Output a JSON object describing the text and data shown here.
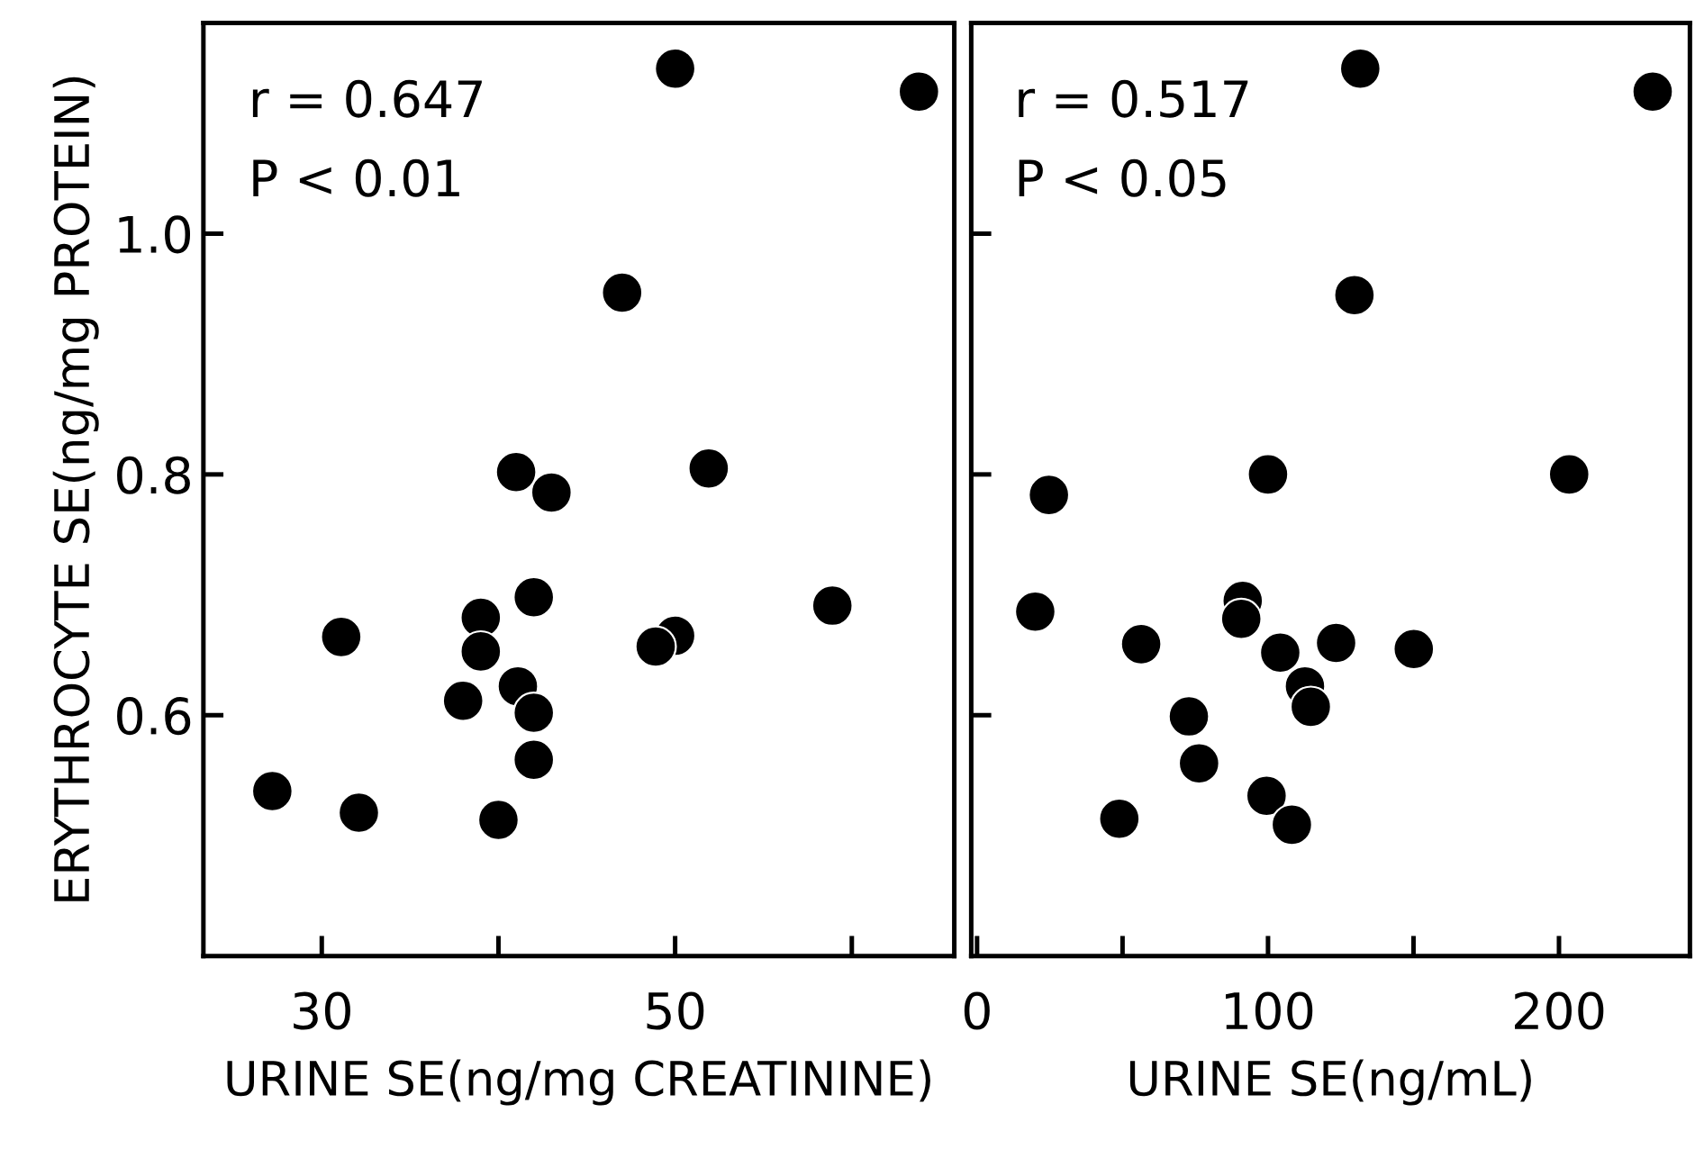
{
  "chart_data": [
    {
      "type": "scatter",
      "xlabel": "URINE SE(ng/mg CREATININE)",
      "ylabel": "ERYTHROCYTE SE(ng/mg PROTEIN)",
      "annotations": [
        "r = 0.647",
        "P < 0.01"
      ],
      "marker": "circle",
      "grid": false,
      "legend": false,
      "xlim": [
        23.3,
        65.8
      ],
      "xticks": [
        30,
        {
          "value": 40,
          "label": null
        },
        50,
        {
          "value": 60,
          "label": null
        }
      ],
      "ylim": [
        0.4,
        1.175
      ],
      "yticks": [
        {
          "value": 1.0,
          "label": "1.0"
        },
        0.8,
        0.6
      ],
      "series": [
        {
          "color": "#000000",
          "x": [
            27.2,
            32.1,
            31.1,
            38.0,
            39.0,
            39.0,
            40.0,
            41.0,
            41.1,
            42.0,
            42.0,
            42.0,
            43.0,
            47.0,
            50.0,
            50.0,
            48.9,
            51.9,
            58.9,
            63.8
          ],
          "values": [
            0.537,
            0.519,
            0.665,
            0.612,
            0.681,
            0.653,
            0.513,
            0.802,
            0.624,
            0.602,
            0.563,
            0.698,
            0.785,
            0.951,
            1.137,
            0.666,
            0.657,
            0.805,
            0.691,
            1.118
          ]
        }
      ]
    },
    {
      "type": "scatter",
      "xlabel": "URINE SE(ng/mL)",
      "annotations": [
        "r = 0.517",
        "P < 0.05"
      ],
      "marker": "circle",
      "grid": false,
      "legend": false,
      "tick_labels": "x",
      "xlim": [
        -2,
        245
      ],
      "xticks": [
        0,
        {
          "value": 50,
          "label": null
        },
        100,
        {
          "value": 150,
          "label": null
        },
        200
      ],
      "ylim": [
        0.4,
        1.175
      ],
      "yticks": [
        {
          "value": 1.0,
          "label": null
        },
        {
          "value": 0.8,
          "label": null
        },
        {
          "value": 0.6,
          "label": null
        }
      ],
      "series": [
        {
          "color": "#000000",
          "x": [
            20.0,
            24.7,
            56.4,
            48.9,
            72.8,
            76.3,
            91.3,
            90.8,
            100.0,
            99.5,
            104.2,
            108.2,
            112.7,
            114.7,
            123.4,
            150.1,
            129.7,
            131.7,
            203.5,
            232.2
          ],
          "values": [
            0.686,
            0.783,
            0.659,
            0.514,
            0.599,
            0.56,
            0.695,
            0.68,
            0.8,
            0.533,
            0.652,
            0.509,
            0.624,
            0.607,
            0.66,
            0.655,
            0.949,
            1.137,
            0.8,
            1.118
          ]
        }
      ]
    }
  ]
}
